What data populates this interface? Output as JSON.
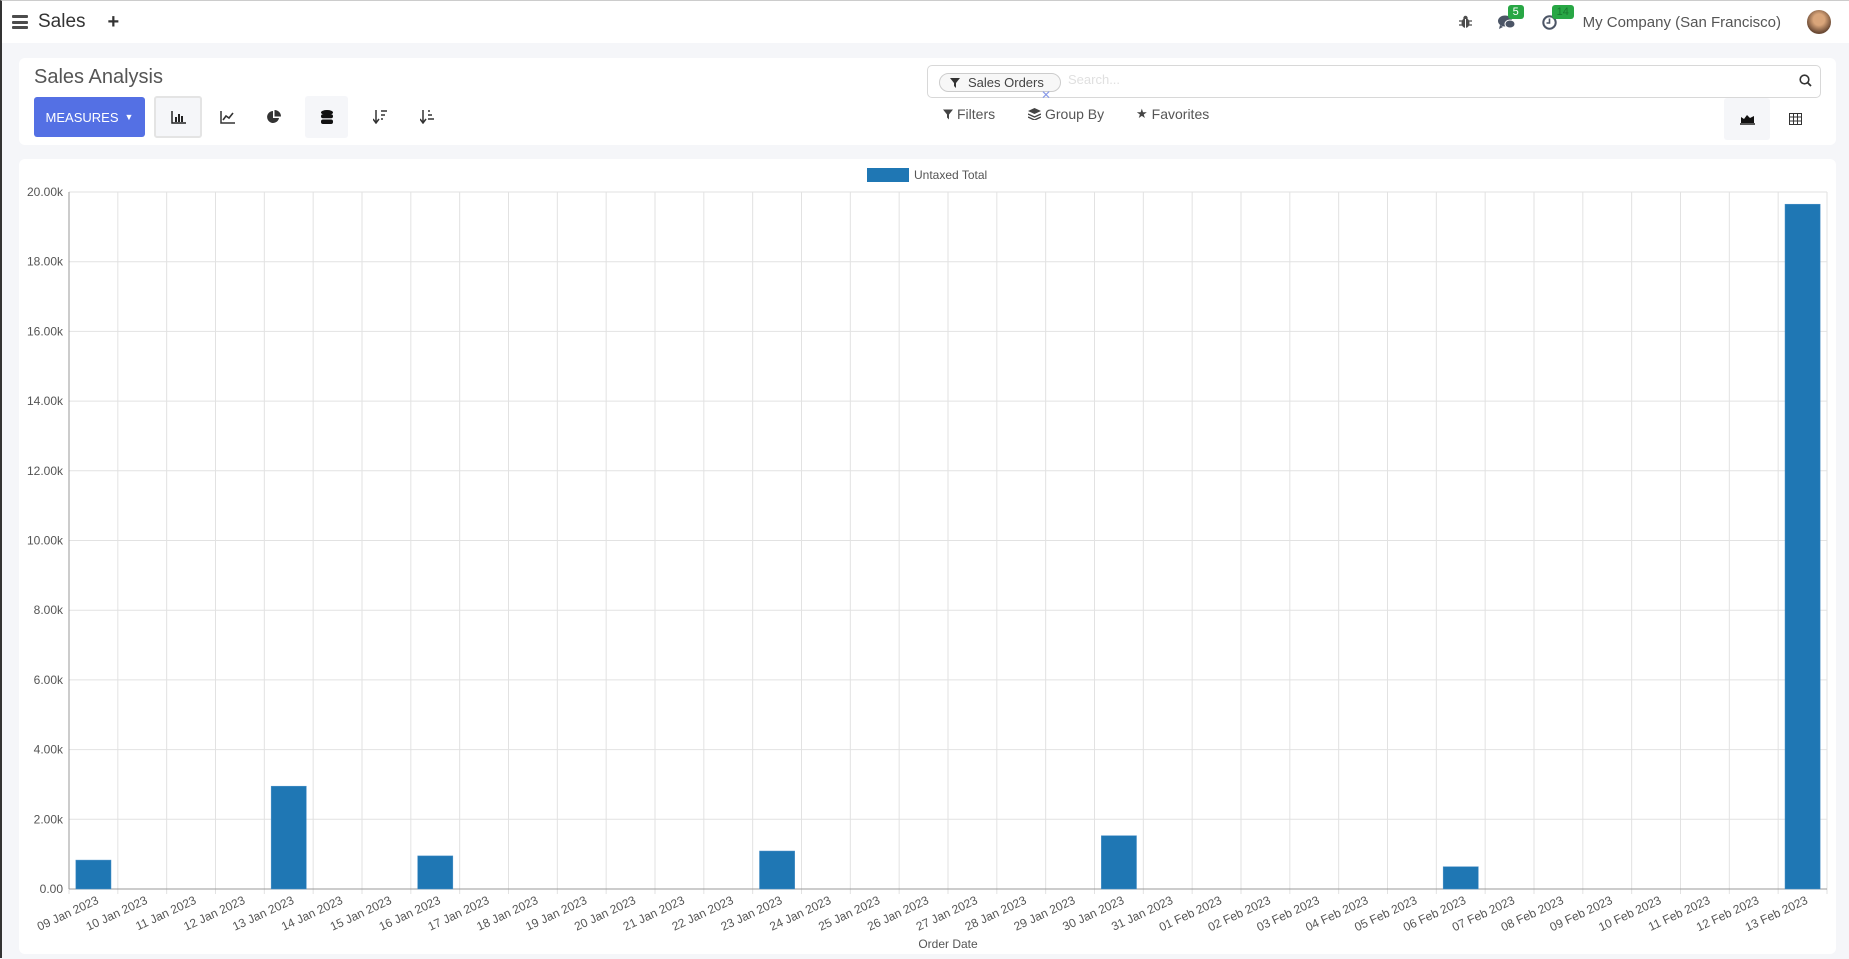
{
  "navbar": {
    "app_name": "Sales",
    "company": "My Company (San Francisco)",
    "messages_count": "5",
    "activities_count": "14"
  },
  "control_panel": {
    "title": "Sales Analysis",
    "measures_label": "MEASURES",
    "search": {
      "facet": "Sales Orders",
      "placeholder": "Search..."
    },
    "filters_label": "Filters",
    "group_by_label": "Group By",
    "favorites_label": "Favorites"
  },
  "colors": {
    "accent": "#5470e4",
    "bar": "#1f77b4",
    "badge": "#28a745"
  },
  "chart_data": {
    "type": "bar",
    "legend": [
      "Untaxed Total"
    ],
    "legend_placement": "top",
    "xlabel": "Order Date",
    "ylabel": "",
    "ylim": [
      0,
      20000
    ],
    "yticks": [
      "0.00",
      "2.00k",
      "4.00k",
      "6.00k",
      "8.00k",
      "10.00k",
      "12.00k",
      "14.00k",
      "16.00k",
      "18.00k",
      "20.00k"
    ],
    "grid": true,
    "categories": [
      "09 Jan 2023",
      "10 Jan 2023",
      "11 Jan 2023",
      "12 Jan 2023",
      "13 Jan 2023",
      "14 Jan 2023",
      "15 Jan 2023",
      "16 Jan 2023",
      "17 Jan 2023",
      "18 Jan 2023",
      "19 Jan 2023",
      "20 Jan 2023",
      "21 Jan 2023",
      "22 Jan 2023",
      "23 Jan 2023",
      "24 Jan 2023",
      "25 Jan 2023",
      "26 Jan 2023",
      "27 Jan 2023",
      "28 Jan 2023",
      "29 Jan 2023",
      "30 Jan 2023",
      "31 Jan 2023",
      "01 Feb 2023",
      "02 Feb 2023",
      "03 Feb 2023",
      "04 Feb 2023",
      "05 Feb 2023",
      "06 Feb 2023",
      "07 Feb 2023",
      "08 Feb 2023",
      "09 Feb 2023",
      "10 Feb 2023",
      "11 Feb 2023",
      "12 Feb 2023",
      "13 Feb 2023"
    ],
    "series": [
      {
        "name": "Untaxed Total",
        "values": [
          830,
          0,
          0,
          0,
          2950,
          0,
          0,
          950,
          0,
          0,
          0,
          0,
          0,
          0,
          1090,
          0,
          0,
          0,
          0,
          0,
          0,
          1530,
          0,
          0,
          0,
          0,
          0,
          0,
          640,
          0,
          0,
          0,
          0,
          0,
          0,
          19650
        ]
      }
    ]
  }
}
